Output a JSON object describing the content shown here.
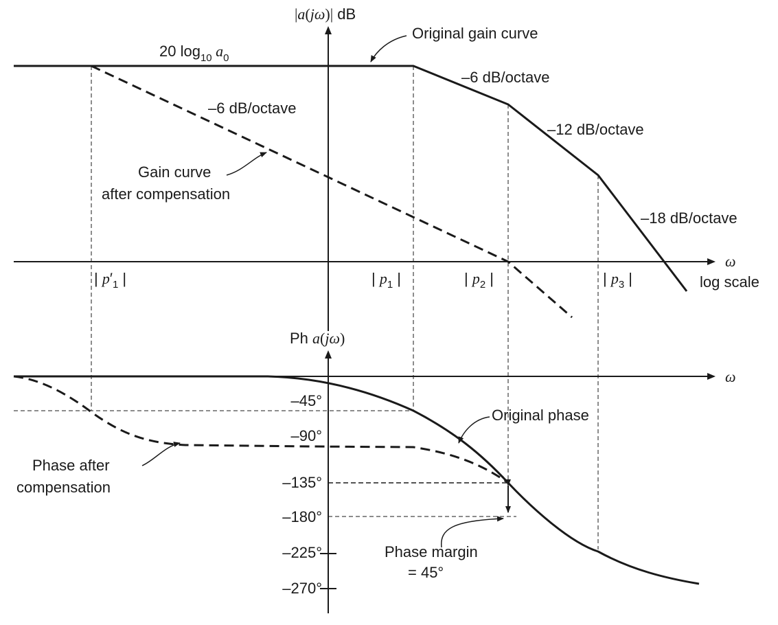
{
  "gain_plot": {
    "y_axis_label": "|a(jω)| dB",
    "x_axis_label": "ω",
    "x_scale_label": "log scale",
    "dc_gain_label": "20 log10 a0",
    "original_curve_label": "Original gain curve",
    "compensated_curve_label_line1": "Gain curve",
    "compensated_curve_label_line2": "after compensation",
    "slope_labels": [
      "–6 dB/octave",
      "–6 dB/octave",
      "–12 dB/octave",
      "–18 dB/octave"
    ],
    "pole_labels": [
      "| p′1 |",
      "| p1 |",
      "| p2 |",
      "| p3 |"
    ]
  },
  "phase_plot": {
    "y_axis_label": "Ph a(jω)",
    "x_axis_label": "ω",
    "ticks": [
      "–45°",
      "–90°",
      "–135°",
      "–180°",
      "–225°",
      "–270°"
    ],
    "original_curve_label": "Original phase",
    "compensated_curve_label_line1": "Phase after",
    "compensated_curve_label_line2": "compensation",
    "margin_label_line1": "Phase margin",
    "margin_label_line2": "= 45°"
  }
}
